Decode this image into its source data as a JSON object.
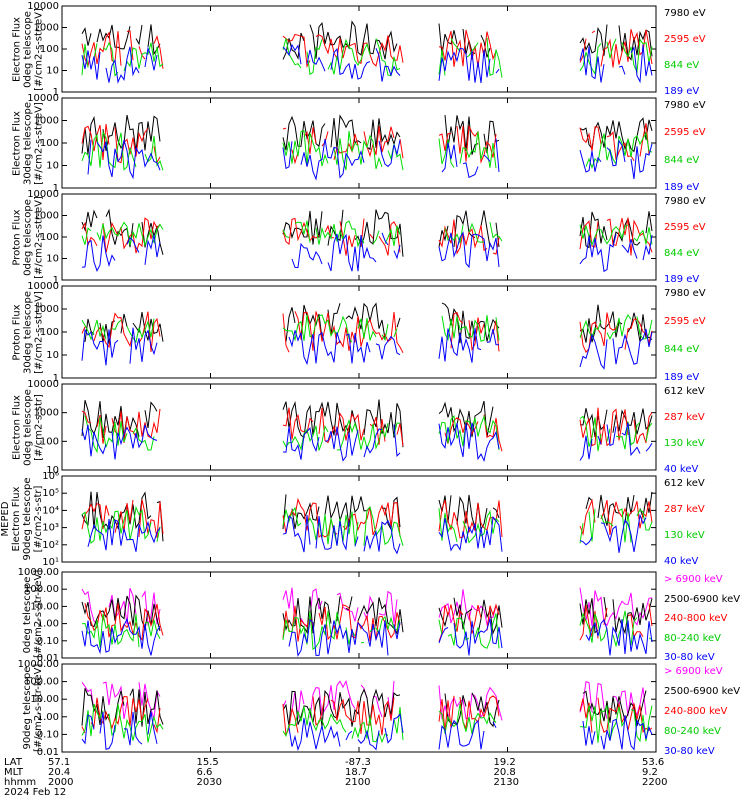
{
  "chart_data": [
    {
      "type": "line",
      "ylabel": [
        "Electron Flux",
        "0deg telescope",
        "[#/cm2-s-str-eV]"
      ],
      "yscale": "log",
      "ylim": [
        1,
        10000
      ],
      "yticks": [
        "1",
        "10",
        "100",
        "1000",
        "10000"
      ],
      "legend": [
        {
          "name": "7980 eV",
          "color": "#000000"
        },
        {
          "name": "2595 eV",
          "color": "#ff0000"
        },
        {
          "name": "844 eV",
          "color": "#00dd00"
        },
        {
          "name": "189 eV",
          "color": "#0000ff"
        }
      ]
    },
    {
      "type": "line",
      "ylabel": [
        "Electron Flux",
        "30deg telescope",
        "[#/cm2-s-str-eV]"
      ],
      "yscale": "log",
      "ylim": [
        1,
        10000
      ],
      "yticks": [
        "1",
        "10",
        "100",
        "1000",
        "10000"
      ],
      "legend": [
        {
          "name": "7980 eV",
          "color": "#000000"
        },
        {
          "name": "2595 eV",
          "color": "#ff0000"
        },
        {
          "name": "844 eV",
          "color": "#00dd00"
        },
        {
          "name": "189 eV",
          "color": "#0000ff"
        }
      ]
    },
    {
      "type": "line",
      "ylabel": [
        "Proton Flux",
        "0deg telescope",
        "[#/cm2-s-str-eV]"
      ],
      "yscale": "log",
      "ylim": [
        1,
        10000
      ],
      "yticks": [
        "1",
        "10",
        "100",
        "1000",
        "10000"
      ],
      "legend": [
        {
          "name": "7980 eV",
          "color": "#000000"
        },
        {
          "name": "2595 eV",
          "color": "#ff0000"
        },
        {
          "name": "844 eV",
          "color": "#00dd00"
        },
        {
          "name": "189 eV",
          "color": "#0000ff"
        }
      ]
    },
    {
      "type": "line",
      "ylabel": [
        "Proton Flux",
        "30deg telescope",
        "[#/cm2-s-str-eV]"
      ],
      "yscale": "log",
      "ylim": [
        1,
        10000
      ],
      "yticks": [
        "1",
        "10",
        "100",
        "1000",
        "10000"
      ],
      "legend": [
        {
          "name": "7980 eV",
          "color": "#000000"
        },
        {
          "name": "2595 eV",
          "color": "#ff0000"
        },
        {
          "name": "844 eV",
          "color": "#00dd00"
        },
        {
          "name": "189 eV",
          "color": "#0000ff"
        }
      ]
    },
    {
      "type": "line",
      "ylabel": [
        "Electron Flux",
        "0deg telescope",
        "[#/cm2-s-str]"
      ],
      "yscale": "log",
      "ylim": [
        10,
        10000
      ],
      "yticks": [
        "10",
        "100",
        "1000",
        "10000"
      ],
      "legend": [
        {
          "name": "612 keV",
          "color": "#000000"
        },
        {
          "name": "287 keV",
          "color": "#ff0000"
        },
        {
          "name": "130 keV",
          "color": "#00dd00"
        },
        {
          "name": "40 keV",
          "color": "#0000ff"
        }
      ]
    },
    {
      "type": "line",
      "ylabel": [
        "MEPED",
        "Electron Flux",
        "90deg telescope",
        "[#/cm2-s-str]"
      ],
      "yscale": "log",
      "ylim": [
        10,
        1000000
      ],
      "yticks": [
        "10¹",
        "10²",
        "10³",
        "10⁴",
        "10⁵",
        "10⁶"
      ],
      "legend": [
        {
          "name": "612 keV",
          "color": "#000000"
        },
        {
          "name": "287 keV",
          "color": "#ff0000"
        },
        {
          "name": "130 keV",
          "color": "#00dd00"
        },
        {
          "name": "40 keV",
          "color": "#0000ff"
        }
      ]
    },
    {
      "type": "line",
      "ylabel": [
        "0deg telescope",
        "[#/cm2-s-str-keV]"
      ],
      "yscale": "log",
      "ylim": [
        0.01,
        1000
      ],
      "yticks": [
        "0.01",
        "0.10",
        "1.00",
        "10.00",
        "100.00",
        "1000.00"
      ],
      "legend": [
        {
          "name": "> 6900 keV",
          "color": "#ff00ff"
        },
        {
          "name": "2500-6900 keV",
          "color": "#000000"
        },
        {
          "name": "240-800 keV",
          "color": "#ff0000"
        },
        {
          "name": "80-240 keV",
          "color": "#00dd00"
        },
        {
          "name": "30-80 keV",
          "color": "#0000ff"
        }
      ]
    },
    {
      "type": "line",
      "ylabel": [
        "90deg telescope",
        "[#/cm2-s-str-keV]"
      ],
      "yscale": "log",
      "ylim": [
        0.01,
        1000
      ],
      "yticks": [
        "0.01",
        "0.10",
        "1.00",
        "10.00",
        "100.00",
        "1000.00"
      ],
      "legend": [
        {
          "name": "> 6900 keV",
          "color": "#ff00ff"
        },
        {
          "name": "2500-6900 keV",
          "color": "#000000"
        },
        {
          "name": "240-800 keV",
          "color": "#ff0000"
        },
        {
          "name": "80-240 keV",
          "color": "#00dd00"
        },
        {
          "name": "30-80 keV",
          "color": "#0000ff"
        }
      ]
    }
  ],
  "xaxis": {
    "row_labels": [
      "LAT",
      "MLT",
      "hhmm"
    ],
    "ticks": [
      {
        "lat": "57.1",
        "mlt": "20.4",
        "hhmm": "2000"
      },
      {
        "lat": "15.5",
        "mlt": "6.6",
        "hhmm": "2030"
      },
      {
        "lat": "-87.3",
        "mlt": "18.7",
        "hhmm": "2100"
      },
      {
        "lat": "19.2",
        "mlt": "20.8",
        "hhmm": "2130"
      },
      {
        "lat": "53.6",
        "mlt": "9.2",
        "hhmm": "2200"
      }
    ],
    "date": "2024 Feb 12"
  }
}
